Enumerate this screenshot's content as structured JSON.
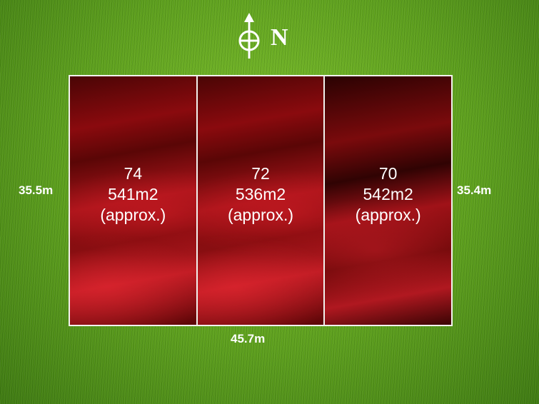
{
  "north": {
    "label": "N",
    "icon": "north-arrow-icon"
  },
  "lots": [
    {
      "number": "74",
      "area": "541m2",
      "note": "(approx.)"
    },
    {
      "number": "72",
      "area": "536m2",
      "note": "(approx.)"
    },
    {
      "number": "70",
      "area": "542m2",
      "note": "(approx.)"
    }
  ],
  "dimensions": {
    "left": "35.5m",
    "right": "35.4m",
    "bottom": "45.7m"
  },
  "colors": {
    "lot_fill": "#a8141a",
    "boundary": "#f2f2ee",
    "grass": "#5d9f1d"
  }
}
